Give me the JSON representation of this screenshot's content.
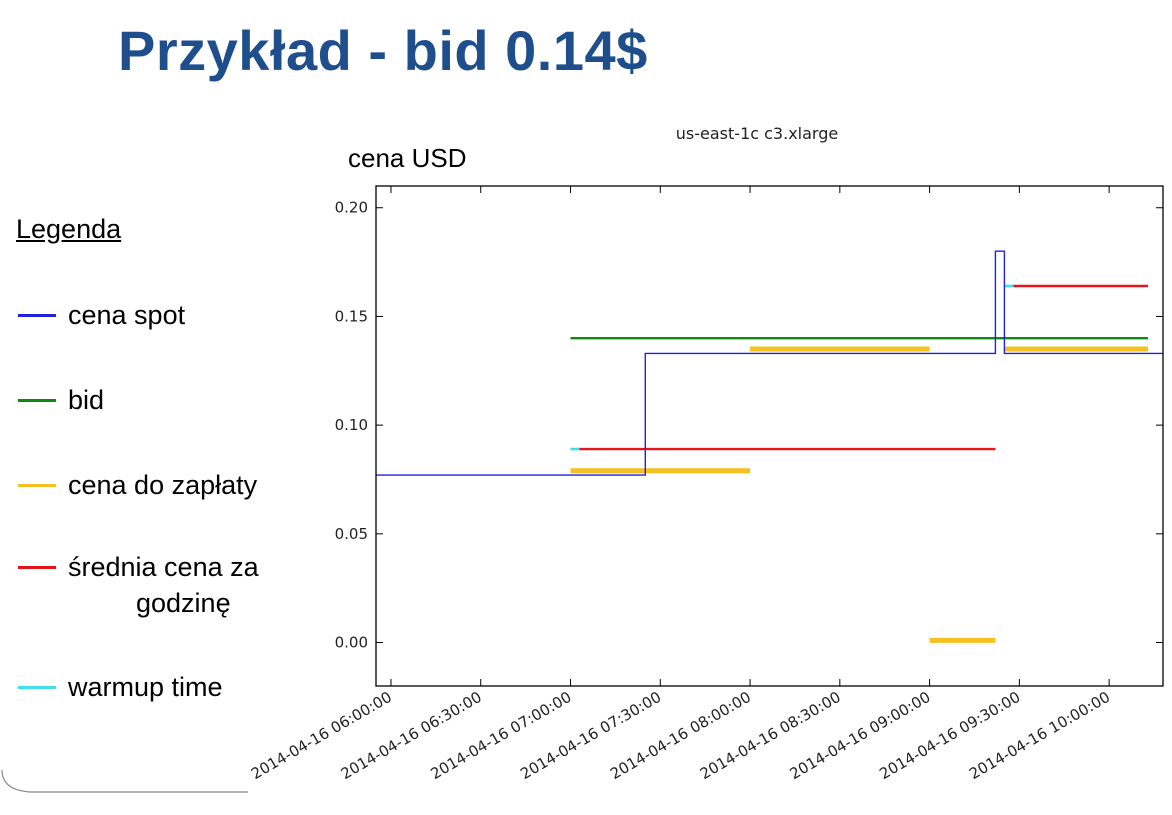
{
  "slide": {
    "title": "Przykład - bid 0.14$"
  },
  "legend": {
    "title": "Legenda",
    "items": [
      {
        "label": "cena spot",
        "color": "#2222dd"
      },
      {
        "label": "bid",
        "color": "#118811"
      },
      {
        "label": "cena do zapłaty",
        "color": "#f6c022"
      },
      {
        "label": "średnia cena za godzinę",
        "line1": "średnia cena za",
        "line2": "godzinę",
        "color": "#e8141b"
      },
      {
        "label": "warmup time",
        "color": "#44ddee"
      }
    ]
  },
  "chart_data": {
    "type": "line",
    "title": "us-east-1c c3.xlarge",
    "ylabel": "cena USD",
    "xlabel": "",
    "ylim": [
      -0.02,
      0.21
    ],
    "xlim": [
      "2014-04-16 05:55:00",
      "2014-04-16 10:18:00"
    ],
    "yticks": [
      "0.00",
      "0.05",
      "0.10",
      "0.15",
      "0.20"
    ],
    "xticks": [
      "2014-04-16 06:00:00",
      "2014-04-16 06:30:00",
      "2014-04-16 07:00:00",
      "2014-04-16 07:30:00",
      "2014-04-16 08:00:00",
      "2014-04-16 08:30:00",
      "2014-04-16 09:00:00",
      "2014-04-16 09:30:00",
      "2014-04-16 10:00:00"
    ],
    "grid": false,
    "series": [
      {
        "name": "cena spot",
        "color": "#2222dd",
        "style": "step",
        "points": [
          [
            "2014-04-16 05:55:00",
            0.077
          ],
          [
            "2014-04-16 07:25:00",
            0.077
          ],
          [
            "2014-04-16 07:25:00",
            0.133
          ],
          [
            "2014-04-16 09:22:00",
            0.133
          ],
          [
            "2014-04-16 09:22:00",
            0.18
          ],
          [
            "2014-04-16 09:25:00",
            0.18
          ],
          [
            "2014-04-16 09:25:00",
            0.133
          ],
          [
            "2014-04-16 10:18:00",
            0.133
          ]
        ]
      },
      {
        "name": "bid",
        "color": "#118811",
        "style": "segments",
        "segments": [
          {
            "x": [
              "2014-04-16 07:00:00",
              "2014-04-16 10:13:00"
            ],
            "y": 0.14
          }
        ]
      },
      {
        "name": "cena do zapłaty",
        "color": "#f6c022",
        "style": "segments",
        "segments": [
          {
            "x": [
              "2014-04-16 07:00:00",
              "2014-04-16 07:25:00"
            ],
            "y": 0.079
          },
          {
            "x": [
              "2014-04-16 07:25:00",
              "2014-04-16 08:00:00"
            ],
            "y": 0.079
          },
          {
            "x": [
              "2014-04-16 08:00:00",
              "2014-04-16 09:00:00"
            ],
            "y": 0.135
          },
          {
            "x": [
              "2014-04-16 09:00:00",
              "2014-04-16 09:22:00"
            ],
            "y": 0.001
          },
          {
            "x": [
              "2014-04-16 09:25:00",
              "2014-04-16 10:13:00"
            ],
            "y": 0.135
          }
        ]
      },
      {
        "name": "średnia cena za godzinę",
        "color": "#e8141b",
        "style": "segments",
        "segments": [
          {
            "x": [
              "2014-04-16 07:03:00",
              "2014-04-16 09:22:00"
            ],
            "y": 0.089
          },
          {
            "x": [
              "2014-04-16 09:28:00",
              "2014-04-16 10:13:00"
            ],
            "y": 0.164
          }
        ]
      },
      {
        "name": "warmup time",
        "color": "#44ddee",
        "style": "segments",
        "segments": [
          {
            "x": [
              "2014-04-16 07:00:00",
              "2014-04-16 07:03:00"
            ],
            "y": 0.089
          },
          {
            "x": [
              "2014-04-16 09:25:00",
              "2014-04-16 09:28:00"
            ],
            "y": 0.164
          }
        ]
      }
    ]
  }
}
